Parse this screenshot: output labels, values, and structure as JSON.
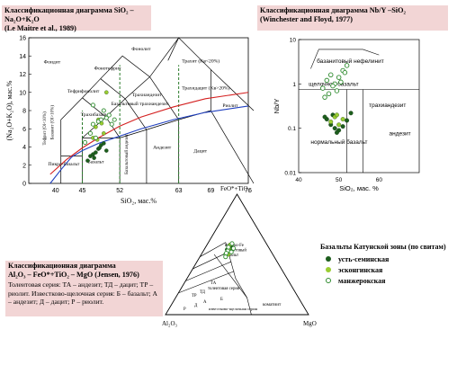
{
  "titles": {
    "tas_l1": "Классификационная диаграмма SiO₂ – Na₂O+K₂O",
    "tas_l2": "(Le Maitre et al., 1989)",
    "nby_l1": "Классификационная диаграмма Nb/Y –SiO₂",
    "nby_l2": "(Winchester and Floyd, 1977)",
    "jen_l1": "Классификационная диаграмма",
    "jen_l2": "Al₂O₃ – FeO*+TiO₂ – MgO (Jensen, 1976)",
    "jen_desc": "Толеитовая серия: ТА – андезит; ТД – дацит; ТР – риолит. Известково-щелочная серия: Б – базальт; А – андезит; Д – дацит; Р – риолит."
  },
  "legend": {
    "title": "Базальты Катунской зоны (по свитам)",
    "items": [
      {
        "label": "усть-семинская",
        "color": "#1d5e1d",
        "style": "filled"
      },
      {
        "label": "эсконгинская",
        "color": "#9acd32",
        "style": "filled"
      },
      {
        "label": "манжерокская",
        "color": "#2e8b2e",
        "style": "open"
      }
    ]
  },
  "tas_labels": {
    "ylabel": "(Na₂O+K₂O), мас.%",
    "xlabel": "SiO₂, мас.%",
    "yticks": [
      "0",
      "2",
      "4",
      "6",
      "8",
      "10",
      "12",
      "14",
      "16"
    ],
    "xticks": [
      "40",
      "45",
      "52",
      "63",
      "69",
      "76"
    ],
    "fields": [
      "Фонолит",
      "Фонотефрит",
      "Фоидит",
      "Тефрифонолит",
      "Трахиандезит",
      "Тефрит (Ol<10%)",
      "Базанит (Ol>10%)",
      "Пикро-базальт",
      "Базальт",
      "Трахибазальт",
      "Базальтовый трахиандезит",
      "Базальтовый андезит",
      "Андезит",
      "Трахит (Kв<20%)",
      "Трахидацит (Kв>20%)",
      "Риолит",
      "Дацит"
    ]
  },
  "nby_labels": {
    "ylabel": "Nb/Y",
    "xlabel": "SiO₂, мас. %",
    "yticks": [
      "10",
      "1",
      "0.1",
      "0.01"
    ],
    "xticks": [
      "40",
      "50",
      "60"
    ],
    "fields": [
      "базанитовый нефелинит",
      "щелочной базальт",
      "трахиандезит",
      "андезит",
      "нормальный базальт"
    ]
  },
  "jen_labels": {
    "apex_top": "FeO*+TiO₂",
    "apex_left": "Al₂O₃",
    "apex_right": "MgO",
    "fields": [
      "высоко-Fe толеитовый базальт",
      "ТА",
      "толеитовая серия",
      "ТД",
      "ТР",
      "Б",
      "А",
      "Д",
      "Р",
      "известково-щелочная серия",
      "коматиит"
    ]
  },
  "chart_data": [
    {
      "type": "scatter",
      "title": "Классификационная диаграмма SiO₂ – Na₂O+K₂O",
      "xlabel": "SiO₂, мас.%",
      "ylabel": "(Na₂O+K₂O), мас.%",
      "xlim": [
        35,
        76
      ],
      "ylim": [
        0,
        16
      ],
      "series": [
        {
          "name": "усть-семинская",
          "x": [
            46.0,
            46.5,
            47.0,
            47.5,
            48.0,
            48.5,
            49.0,
            49.5,
            47.2,
            48.2
          ],
          "y": [
            2.5,
            3.0,
            3.2,
            3.4,
            3.8,
            4.2,
            4.4,
            3.6,
            2.8,
            3.9
          ]
        },
        {
          "name": "эсконгинская",
          "x": [
            47.0,
            47.5,
            48.0,
            49.0,
            49.5,
            48.6,
            47.8
          ],
          "y": [
            5.0,
            6.2,
            7.0,
            5.5,
            10.0,
            6.6,
            4.8
          ]
        },
        {
          "name": "манжерокская",
          "x": [
            45.5,
            46.5,
            47.0,
            47.5,
            48.0,
            48.5,
            49.0,
            49.5,
            50.0,
            50.5,
            51.0,
            47.0
          ],
          "y": [
            4.5,
            5.5,
            6.5,
            5.0,
            6.8,
            7.0,
            8.0,
            7.2,
            7.5,
            6.5,
            7.0,
            8.6
          ]
        }
      ]
    },
    {
      "type": "scatter",
      "title": "Классификационная диаграмма Nb/Y –SiO₂",
      "xlabel": "SiO₂, мас. %",
      "ylabel": "Nb/Y",
      "xlim": [
        40,
        70
      ],
      "ylim": [
        0.01,
        10
      ],
      "yscale": "log",
      "series": [
        {
          "name": "усть-семинская",
          "x": [
            47,
            48,
            49,
            50,
            51,
            52,
            48.5,
            49.5,
            53,
            46.5
          ],
          "y": [
            0.16,
            0.12,
            0.1,
            0.09,
            0.11,
            0.15,
            0.2,
            0.08,
            0.22,
            0.18
          ]
        },
        {
          "name": "эсконгинская",
          "x": [
            48,
            49,
            50,
            51,
            49.5
          ],
          "y": [
            0.14,
            0.18,
            0.12,
            0.16,
            0.2
          ]
        },
        {
          "name": "манжерокская",
          "x": [
            46,
            47,
            48,
            49,
            50,
            51,
            52,
            47.5,
            48.5,
            49.5,
            50.5,
            51.5,
            46.5
          ],
          "y": [
            0.8,
            1.2,
            1.6,
            1.0,
            1.4,
            2.0,
            2.6,
            0.6,
            0.9,
            0.7,
            1.1,
            1.8,
            0.5
          ]
        }
      ]
    },
    {
      "type": "scatter",
      "title": "Классификационная диаграмма Al₂O₃ – FeO*+TiO₂ – MgO (Jensen, 1976)",
      "xlabel": "",
      "ylabel": "",
      "series": [
        {
          "name": "усть-семинская",
          "FeT": [
            0.56,
            0.55,
            0.53,
            0.58,
            0.54,
            0.57
          ],
          "Al": [
            0.28,
            0.26,
            0.29,
            0.25,
            0.3,
            0.27
          ],
          "Mg": [
            0.16,
            0.19,
            0.18,
            0.17,
            0.16,
            0.16
          ]
        },
        {
          "name": "эсконгинская",
          "FeT": [
            0.52,
            0.55,
            0.5,
            0.58
          ],
          "Al": [
            0.3,
            0.28,
            0.31,
            0.26
          ],
          "Mg": [
            0.18,
            0.17,
            0.19,
            0.16
          ]
        },
        {
          "name": "манжерокская",
          "FeT": [
            0.5,
            0.53,
            0.56,
            0.48,
            0.52,
            0.55,
            0.59,
            0.51
          ],
          "Al": [
            0.33,
            0.3,
            0.28,
            0.34,
            0.28,
            0.25,
            0.24,
            0.32
          ],
          "Mg": [
            0.17,
            0.17,
            0.16,
            0.18,
            0.2,
            0.2,
            0.17,
            0.17
          ]
        }
      ]
    }
  ]
}
